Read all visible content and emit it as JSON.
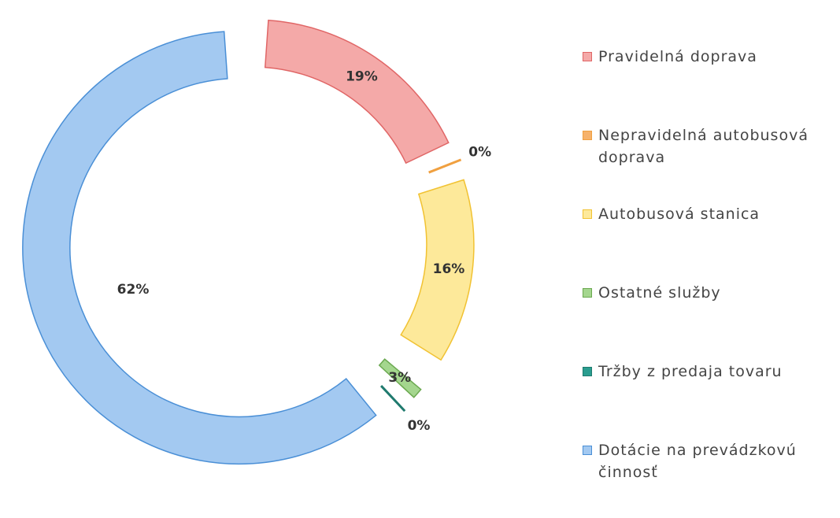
{
  "chart_data": {
    "type": "donut",
    "categories": [
      "Pravidelná doprava",
      "Nepravidelná autobusová doprava",
      "Autobusová stanica",
      "Ostatné služby",
      "Tržby z predaja tovaru",
      "Dotácie na prevádzkovú činnosť"
    ],
    "values": [
      19,
      0,
      16,
      3,
      0,
      62
    ],
    "value_labels": [
      "19%",
      "0%",
      "16%",
      "3%",
      "0%",
      "62%"
    ],
    "colors": [
      "#f4a9a8",
      "#f6b26b",
      "#fde99a",
      "#a4d68e",
      "#2a9d8f",
      "#a3c9f1"
    ],
    "strokes": [
      "#e06666",
      "#f0a040",
      "#f1c232",
      "#6aa84f",
      "#1f7a6e",
      "#4a8fd6"
    ]
  }
}
